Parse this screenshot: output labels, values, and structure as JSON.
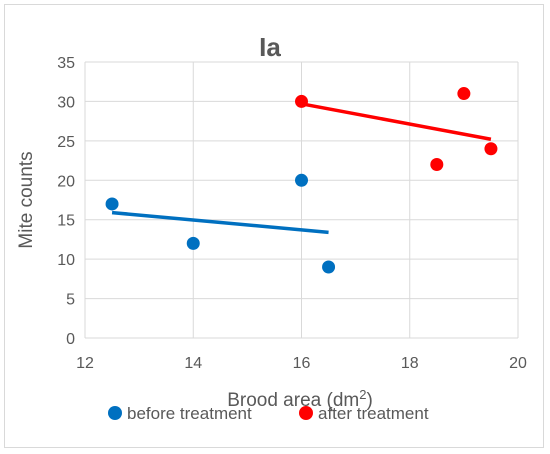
{
  "chart_data": {
    "type": "scatter",
    "title": "Ia",
    "xlabel_main": "Brood area (dm",
    "xlabel_sup": "2",
    "xlabel_close": ")",
    "ylabel": "Mite counts",
    "xlim": [
      12,
      20
    ],
    "ylim": [
      0,
      35
    ],
    "x_ticks": [
      "12",
      "14",
      "16",
      "18",
      "20"
    ],
    "y_ticks": [
      "0",
      "5",
      "10",
      "15",
      "20",
      "25",
      "30",
      "35"
    ],
    "grid": "horizontal and vertical",
    "legend_position": "bottom",
    "series": [
      {
        "name": "before treatment",
        "color": "#0070C0",
        "x": [
          12.5,
          14,
          16,
          16.5
        ],
        "y": [
          17,
          12,
          20,
          9
        ],
        "trendline": {
          "x": [
            12.5,
            16.5
          ],
          "y": [
            15.9,
            13.4
          ]
        }
      },
      {
        "name": "after treatment",
        "color": "#FF0000",
        "x": [
          16,
          18.5,
          19,
          19.5
        ],
        "y": [
          30,
          22,
          31,
          24
        ],
        "trendline": {
          "x": [
            16,
            19.5
          ],
          "y": [
            29.7,
            25.2
          ]
        }
      }
    ]
  }
}
